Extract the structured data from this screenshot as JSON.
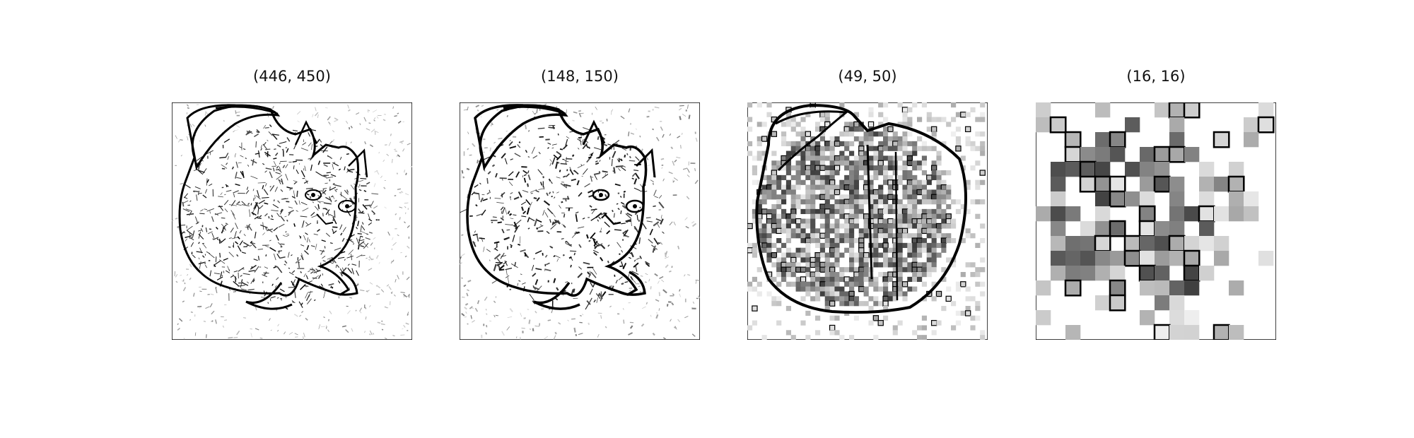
{
  "figure": {
    "panels": [
      {
        "title": "(446, 450)",
        "grid": [
          446,
          450
        ],
        "content": "cat-edge-sketch"
      },
      {
        "title": "(148, 150)",
        "grid": [
          148,
          150
        ],
        "content": "cat-edge-sketch"
      },
      {
        "title": "(49, 50)",
        "grid": [
          49,
          50
        ],
        "content": "cat-edge-sketch"
      },
      {
        "title": "(16, 16)",
        "grid": [
          16,
          16
        ],
        "content": "cat-edge-sketch"
      }
    ]
  }
}
